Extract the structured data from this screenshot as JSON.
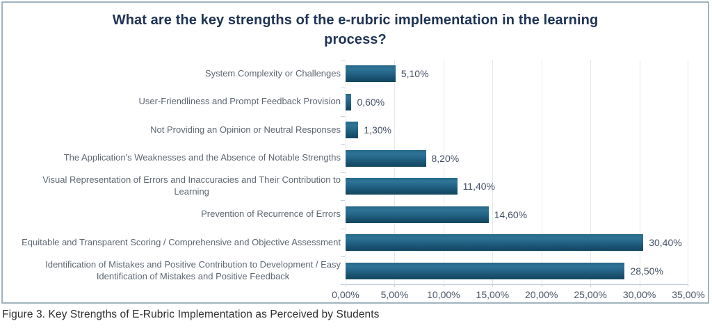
{
  "figure": {
    "caption": "Figure 3. Key Strengths of E-Rubric Implementation as Perceived by Students"
  },
  "chart_data": {
    "type": "bar",
    "orientation": "horizontal",
    "title": "What are the key strengths of the e-rubric implementation in the learning\nprocess?",
    "categories": [
      "System Complexity or Challenges",
      "User-Friendliness and Prompt Feedback Provision",
      "Not Providing an Opinion or Neutral Responses",
      "The Application's Weaknesses and the Absence of Notable Strengths",
      "Visual Representation of Errors and Inaccuracies and Their Contribution to\nLearning",
      "Prevention of Recurrence of Errors",
      "Equitable and Transparent Scoring / Comprehensive and Objective Assessment",
      "Identification of Mistakes and Positive Contribution to Development / Easy\nIdentification of Mistakes and Positive Feedback"
    ],
    "values": [
      5.1,
      0.6,
      1.3,
      8.2,
      11.4,
      14.6,
      30.4,
      28.5
    ],
    "value_labels": [
      "5,10%",
      "0,60%",
      "1,30%",
      "8,20%",
      "11,40%",
      "14,60%",
      "30,40%",
      "28,50%"
    ],
    "x_ticks": [
      "0,00%",
      "5,00%",
      "10,00%",
      "15,00%",
      "20,00%",
      "25,00%",
      "30,00%",
      "35,00%"
    ],
    "xlim": [
      0,
      35
    ],
    "xlabel": "",
    "ylabel": "",
    "grid": "vertical",
    "legend": "none",
    "colors": {
      "bar_gradient_top": "#2e7396",
      "bar_gradient_bottom": "#134760",
      "title_text": "#1e3354",
      "category_text": "#5d6672",
      "value_text": "#445064",
      "axis_text": "#4a5566",
      "gridline": "#e3e8ed",
      "border": "#9fb4c0"
    }
  }
}
